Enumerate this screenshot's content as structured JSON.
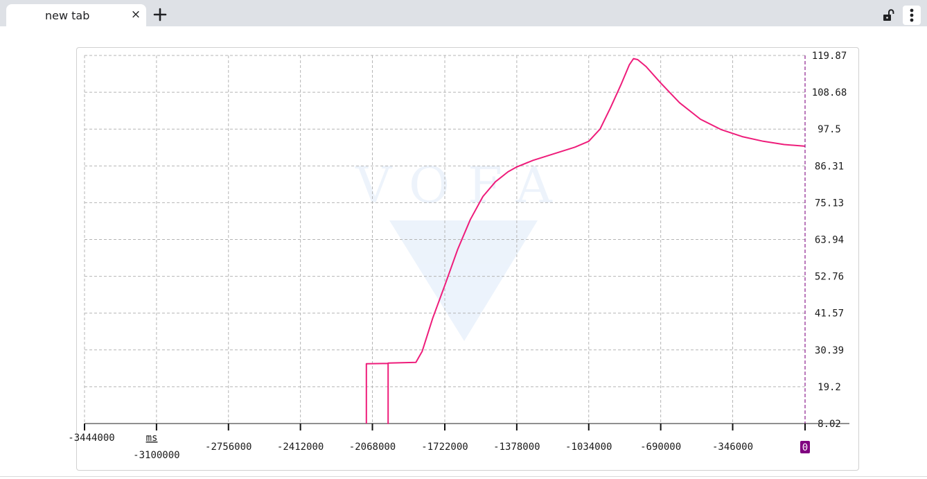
{
  "browser": {
    "tab_title": "new tab",
    "close_glyph": "×"
  },
  "chart_data": {
    "type": "line",
    "x_unit": "ms",
    "x_ticks": [
      "-3444000",
      "-3100000",
      "-2756000",
      "-2412000",
      "-2068000",
      "-1722000",
      "-1378000",
      "-1034000",
      "-690000",
      "-346000"
    ],
    "x_cursor_label": "0",
    "y_ticks": [
      "119.87",
      "108.68",
      "97.5",
      "86.31",
      "75.13",
      "63.94",
      "52.76",
      "41.57",
      "30.39",
      "19.2",
      "8.02"
    ],
    "xlim": [
      -3444000,
      0
    ],
    "ylim": [
      8.02,
      119.87
    ],
    "grid": true,
    "watermark": "VOFA",
    "series": [
      {
        "color": "#ee1c7a",
        "points": [
          [
            -2097000,
            8.0
          ],
          [
            -2097000,
            26.2
          ],
          [
            -1993000,
            26.3
          ],
          [
            -1993000,
            8.0
          ],
          [
            -1993000,
            26.4
          ],
          [
            -1860000,
            26.6
          ],
          [
            -1830000,
            30.0
          ],
          [
            -1780000,
            40.0
          ],
          [
            -1722000,
            50.0
          ],
          [
            -1660000,
            61.0
          ],
          [
            -1600000,
            70.0
          ],
          [
            -1540000,
            77.0
          ],
          [
            -1480000,
            81.5
          ],
          [
            -1420000,
            84.5
          ],
          [
            -1378000,
            86.0
          ],
          [
            -1300000,
            88.0
          ],
          [
            -1200000,
            90.0
          ],
          [
            -1100000,
            92.0
          ],
          [
            -1034000,
            93.8
          ],
          [
            -980000,
            97.5
          ],
          [
            -930000,
            104.0
          ],
          [
            -880000,
            111.0
          ],
          [
            -840000,
            117.0
          ],
          [
            -820000,
            118.9
          ],
          [
            -800000,
            118.6
          ],
          [
            -760000,
            116.5
          ],
          [
            -690000,
            111.5
          ],
          [
            -600000,
            105.5
          ],
          [
            -500000,
            100.5
          ],
          [
            -400000,
            97.3
          ],
          [
            -300000,
            95.2
          ],
          [
            -200000,
            93.8
          ],
          [
            -100000,
            92.8
          ],
          [
            0,
            92.3
          ]
        ]
      }
    ]
  }
}
